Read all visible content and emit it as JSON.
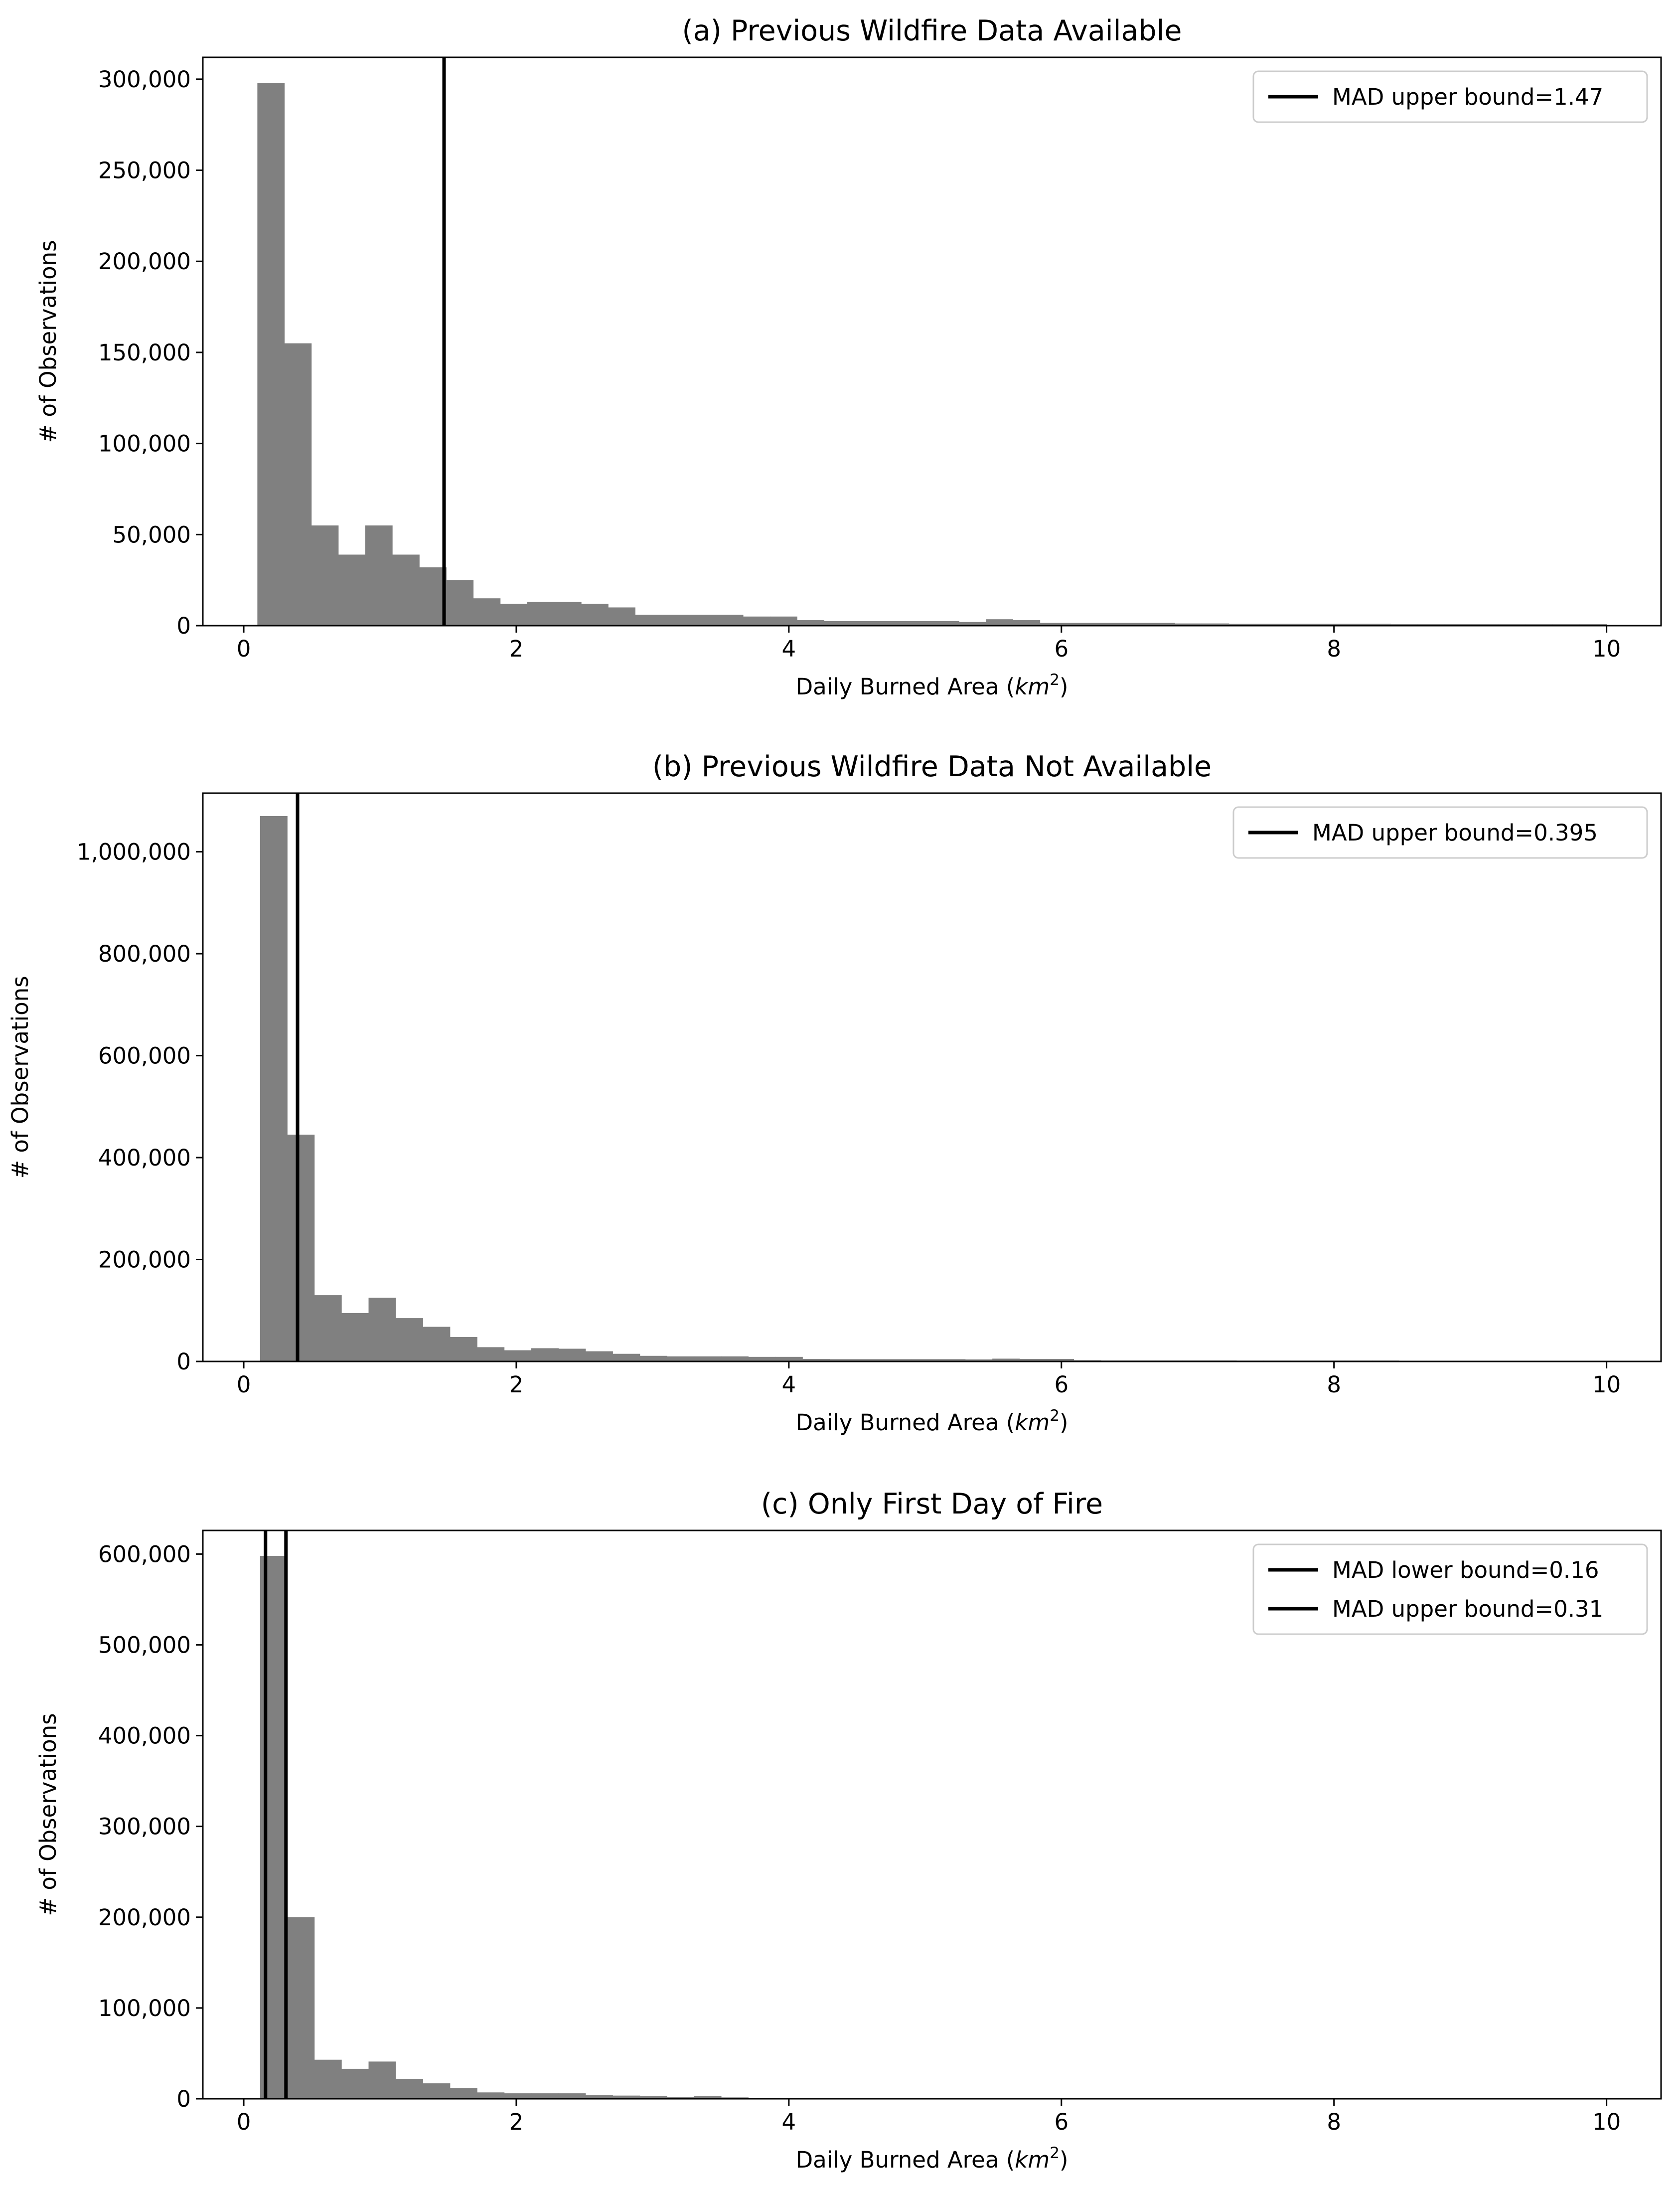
{
  "figure_id": "wildfire-histograms",
  "chart_data": [
    {
      "type": "bar",
      "title": "(a) Previous Wildfire Data Available",
      "xlabel_main": "Daily Burned Area (",
      "xlabel_unit": "km",
      "xlabel_sup": "2",
      "xlabel_close": ")",
      "ylabel": "# of Observations",
      "xlim": [
        -0.3,
        10.4
      ],
      "ylim": [
        0,
        312000
      ],
      "xticks": [
        0,
        2,
        4,
        6,
        8,
        10
      ],
      "xtick_labels": [
        "0",
        "2",
        "4",
        "6",
        "8",
        "10"
      ],
      "yticks": [
        0,
        50000,
        100000,
        150000,
        200000,
        250000,
        300000
      ],
      "ytick_labels": [
        "0",
        "50,000",
        "100,000",
        "150,000",
        "200,000",
        "250,000",
        "300,000"
      ],
      "bin_start": 0.1,
      "bin_width": 0.198,
      "values": [
        298000,
        155000,
        55000,
        39000,
        55000,
        39000,
        32000,
        25000,
        15000,
        12000,
        13000,
        13000,
        12000,
        10000,
        6000,
        6000,
        6000,
        6000,
        5000,
        5000,
        3000,
        2500,
        2500,
        2500,
        2500,
        2500,
        2000,
        3500,
        3000,
        1500,
        1500,
        1500,
        1500,
        1500,
        1200,
        1200,
        1000,
        1000,
        1000,
        1000,
        1000,
        1000,
        800,
        800,
        800,
        800,
        800,
        800,
        800,
        800
      ],
      "vlines": [
        1.47
      ],
      "legend": {
        "position": "top-right",
        "entries": [
          "MAD upper bound=1.47"
        ]
      }
    },
    {
      "type": "bar",
      "title": "(b) Previous Wildfire Data Not Available",
      "xlabel_main": "Daily Burned Area (",
      "xlabel_unit": "km",
      "xlabel_sup": "2",
      "xlabel_close": ")",
      "ylabel": "# of Observations",
      "xlim": [
        -0.3,
        10.4
      ],
      "ylim": [
        0,
        1115000
      ],
      "xticks": [
        0,
        2,
        4,
        6,
        8,
        10
      ],
      "xtick_labels": [
        "0",
        "2",
        "4",
        "6",
        "8",
        "10"
      ],
      "yticks": [
        0,
        200000,
        400000,
        600000,
        800000,
        1000000
      ],
      "ytick_labels": [
        "0",
        "200,000",
        "400,000",
        "600,000",
        "800,000",
        "1,000,000"
      ],
      "bin_start": 0.12,
      "bin_width": 0.199,
      "values": [
        1070000,
        445000,
        130000,
        95000,
        125000,
        85000,
        68000,
        48000,
        28000,
        22000,
        26000,
        25000,
        20000,
        15000,
        11000,
        10000,
        10000,
        10000,
        9000,
        9000,
        5000,
        4500,
        4500,
        4500,
        4500,
        4500,
        4000,
        5500,
        5000,
        5000,
        2500,
        2000,
        2000,
        2000,
        2000,
        2000,
        1800,
        1800,
        1800,
        1800,
        1800,
        1800,
        1500,
        1500,
        1500,
        1500,
        1500,
        1500,
        1500,
        1500
      ],
      "vlines": [
        0.395
      ],
      "legend": {
        "position": "top-right",
        "entries": [
          "MAD upper bound=0.395"
        ]
      }
    },
    {
      "type": "bar",
      "title": "(c) Only First Day of Fire",
      "xlabel_main": "Daily Burned Area (",
      "xlabel_unit": "km",
      "xlabel_sup": "2",
      "xlabel_close": ")",
      "ylabel": "# of Observations",
      "xlim": [
        -0.3,
        10.4
      ],
      "ylim": [
        0,
        626000
      ],
      "xticks": [
        0,
        2,
        4,
        6,
        8,
        10
      ],
      "xtick_labels": [
        "0",
        "2",
        "4",
        "6",
        "8",
        "10"
      ],
      "yticks": [
        0,
        100000,
        200000,
        300000,
        400000,
        500000,
        600000
      ],
      "ytick_labels": [
        "0",
        "100,000",
        "200,000",
        "300,000",
        "400,000",
        "500,000",
        "600,000"
      ],
      "bin_start": 0.12,
      "bin_width": 0.199,
      "values": [
        598000,
        200000,
        43000,
        33000,
        41000,
        22000,
        17000,
        12000,
        7000,
        6000,
        6000,
        6000,
        4000,
        3500,
        3000,
        2000,
        3000,
        1500,
        1000,
        800,
        600,
        500,
        500,
        500,
        400,
        400,
        300,
        300,
        300,
        300,
        300,
        300,
        300,
        300,
        300,
        300,
        300,
        300,
        300,
        300,
        300,
        300,
        300,
        300,
        300,
        300,
        300,
        300,
        300,
        300
      ],
      "vlines": [
        0.16,
        0.31
      ],
      "legend": {
        "position": "top-right",
        "entries": [
          "MAD lower bound=0.16",
          "MAD upper bound=0.31"
        ]
      }
    }
  ]
}
